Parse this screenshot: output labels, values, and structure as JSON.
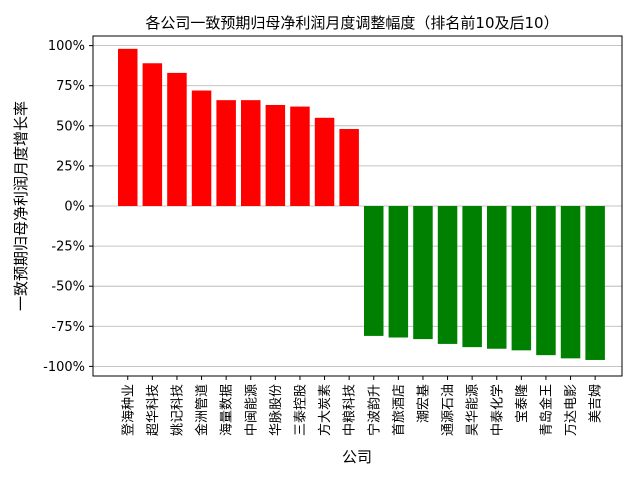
{
  "chart_data": {
    "type": "bar",
    "title": "各公司一致预期归母净利润月度调整幅度（排名前10及后10）",
    "xlabel": "公司",
    "ylabel": "一致预期归母净利润月度增长率",
    "categories": [
      "登海种业",
      "超华科技",
      "姚记科技",
      "金洲管道",
      "海量数据",
      "中闽能源",
      "华脉股份",
      "三泰控股",
      "方大炭素",
      "中粮科技",
      "宁波韵升",
      "首旅酒店",
      "潮宏基",
      "通源石油",
      "昊华能源",
      "中泰化学",
      "宝泰隆",
      "青岛金王",
      "万达电影",
      "美吉姆"
    ],
    "values": [
      98,
      89,
      83,
      72,
      66,
      66,
      63,
      62,
      55,
      48,
      -81,
      -82,
      -83,
      -86,
      -88,
      -89,
      -90,
      -93,
      -95,
      -96
    ],
    "colors": [
      "#ff0000",
      "#ff0000",
      "#ff0000",
      "#ff0000",
      "#ff0000",
      "#ff0000",
      "#ff0000",
      "#ff0000",
      "#ff0000",
      "#ff0000",
      "#008000",
      "#008000",
      "#008000",
      "#008000",
      "#008000",
      "#008000",
      "#008000",
      "#008000",
      "#008000",
      "#008000"
    ],
    "yticks": [
      100,
      75,
      50,
      25,
      0,
      -25,
      -50,
      -75,
      -100
    ],
    "ytick_labels": [
      "100%",
      "75%",
      "50%",
      "25%",
      "0%",
      "-25%",
      "-50%",
      "-75%",
      "-100%"
    ],
    "ylim": [
      -106,
      106
    ],
    "grid": "horizontal",
    "grid_color": "#b0b0b0"
  }
}
